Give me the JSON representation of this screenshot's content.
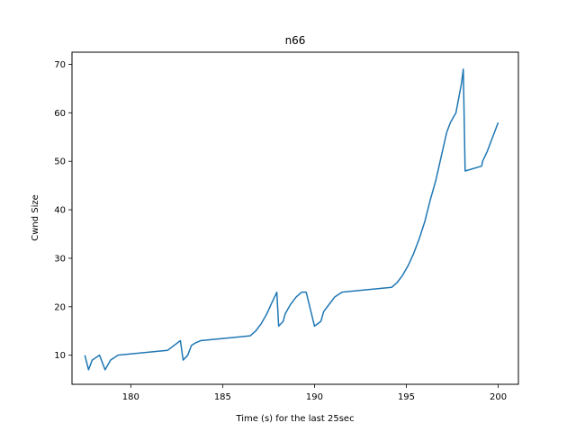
{
  "chart_data": {
    "type": "line",
    "title": "n66",
    "xlabel": "Time (s) for the last 25sec",
    "ylabel": "Cwnd Size",
    "xlim": [
      176.8,
      201.1
    ],
    "ylim": [
      4,
      72.5
    ],
    "xticks": [
      180,
      185,
      190,
      195,
      200
    ],
    "yticks": [
      10,
      20,
      30,
      40,
      50,
      60,
      70
    ],
    "grid": false,
    "series": [
      {
        "color": "#1f77b4",
        "x": [
          177.5,
          177.7,
          177.9,
          178.3,
          178.6,
          178.9,
          179.3,
          182.0,
          182.7,
          182.85,
          183.1,
          183.3,
          183.5,
          183.8,
          186.5,
          186.8,
          187.1,
          187.4,
          187.7,
          187.95,
          188.05,
          188.3,
          188.4,
          188.7,
          189.0,
          189.3,
          189.55,
          190.0,
          190.35,
          190.5,
          190.8,
          191.1,
          191.5,
          194.2,
          194.5,
          194.8,
          195.1,
          195.4,
          195.7,
          196.0,
          196.3,
          196.6,
          196.9,
          197.2,
          197.4,
          197.7,
          198.0,
          198.1,
          198.2,
          199.1,
          199.15,
          199.4,
          199.7,
          200.0
        ],
        "y": [
          10,
          7,
          9,
          10,
          7,
          9,
          10,
          11,
          13,
          9,
          10,
          12,
          12.5,
          13,
          14,
          15,
          16.5,
          18.5,
          21,
          23,
          16,
          17,
          18.5,
          20.5,
          22,
          23,
          23,
          16,
          17,
          19,
          20.5,
          22,
          23,
          24,
          25,
          26.5,
          28.5,
          31,
          34,
          37.5,
          42,
          46,
          51,
          56,
          58,
          60,
          66,
          69,
          48,
          49,
          50,
          52,
          55,
          58
        ]
      }
    ]
  }
}
